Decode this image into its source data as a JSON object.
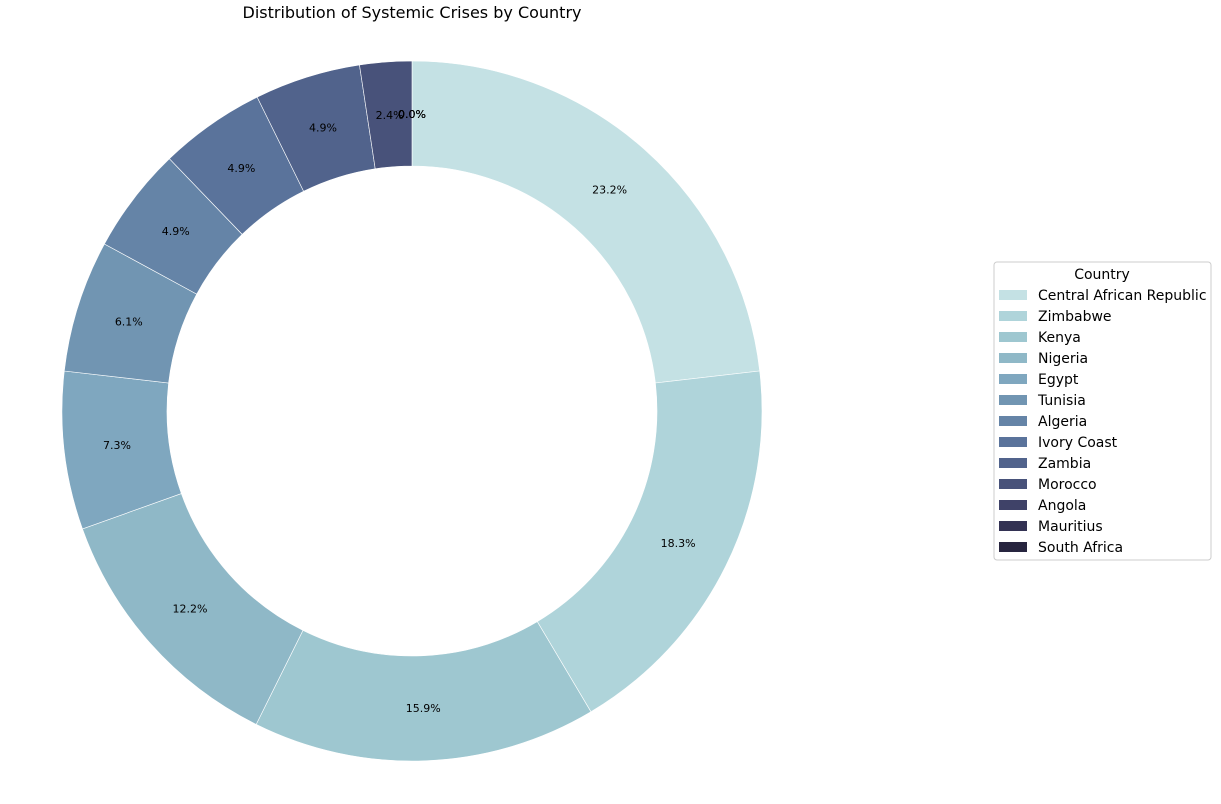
{
  "chart_data": {
    "type": "pie",
    "variant": "donut",
    "title": "Distribution of Systemic Crises by Country",
    "legend_title": "Country",
    "legend_placement": "center-right",
    "start_angle_deg": 90,
    "direction": "clockwise",
    "series": [
      {
        "name": "Central African Republic",
        "percent": 23.2,
        "label": "23.2%",
        "color": "#c4e1e4"
      },
      {
        "name": "Zimbabwe",
        "percent": 18.3,
        "label": "18.3%",
        "color": "#afd4da"
      },
      {
        "name": "Kenya",
        "percent": 15.9,
        "label": "15.9%",
        "color": "#9ec7d0"
      },
      {
        "name": "Nigeria",
        "percent": 12.2,
        "label": "12.2%",
        "color": "#8fb8c7"
      },
      {
        "name": "Egypt",
        "percent": 7.3,
        "label": "7.3%",
        "color": "#7fa7bf"
      },
      {
        "name": "Tunisia",
        "percent": 6.1,
        "label": "6.1%",
        "color": "#7195b2"
      },
      {
        "name": "Algeria",
        "percent": 4.9,
        "label": "4.9%",
        "color": "#6584a7"
      },
      {
        "name": "Ivory Coast",
        "percent": 4.9,
        "label": "4.9%",
        "color": "#5a739b"
      },
      {
        "name": "Zambia",
        "percent": 4.9,
        "label": "4.9%",
        "color": "#51638c"
      },
      {
        "name": "Morocco",
        "percent": 2.4,
        "label": "2.4%",
        "color": "#48527a"
      },
      {
        "name": "Angola",
        "percent": 0.0,
        "label": "0.0%",
        "color": "#3f4268"
      },
      {
        "name": "Mauritius",
        "percent": 0.0,
        "label": "0.0%",
        "color": "#333253"
      },
      {
        "name": "South Africa",
        "percent": 0.0,
        "label": "0.0%",
        "color": "#27253f"
      }
    ]
  }
}
